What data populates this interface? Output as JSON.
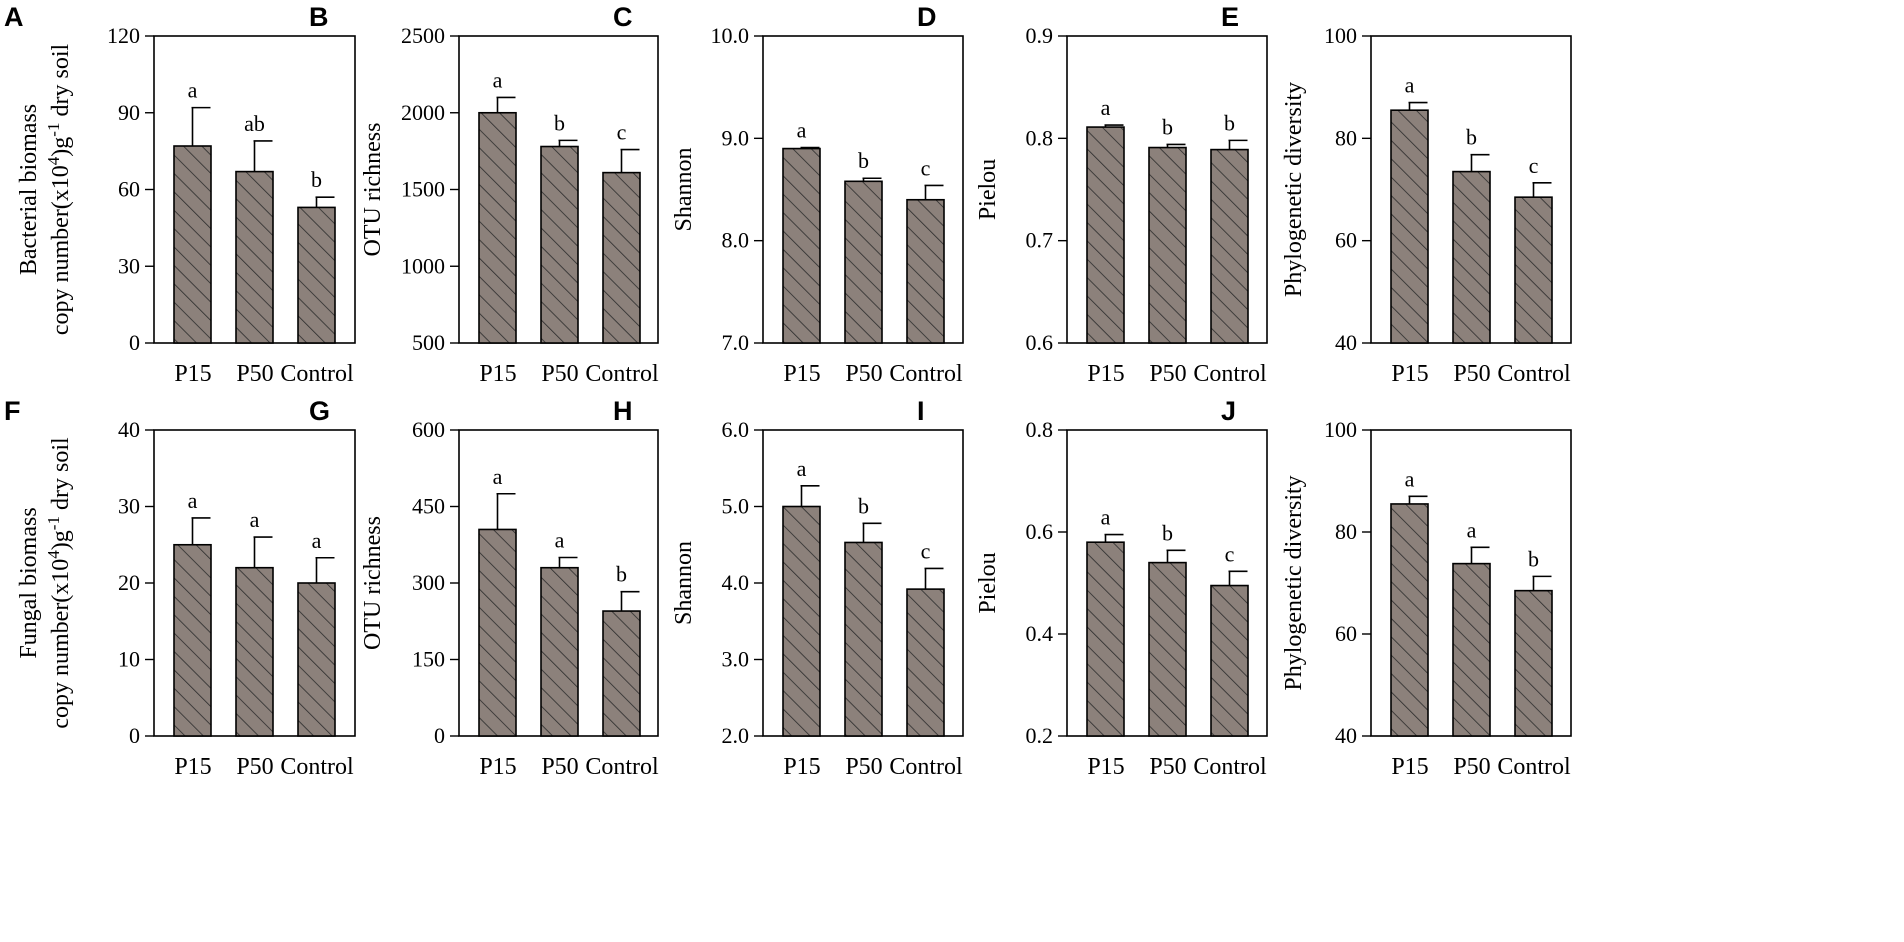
{
  "colors": {
    "bar_fill": "#8c817b",
    "hatch": "#2b2b2b",
    "axis": "#000000"
  },
  "chart_data": [
    {
      "letter": "A",
      "type": "bar",
      "categories": [
        "P15",
        "P50",
        "Control"
      ],
      "values": [
        77,
        67,
        53
      ],
      "errors": [
        15,
        12,
        4
      ],
      "significance": [
        "a",
        "ab",
        "b"
      ],
      "ylabel": "Bacterial biomass",
      "ylabel2": "copy number(x10",
      "ylabel2_sup1": "4",
      "ylabel2_mid": ")g",
      "ylabel2_sup2": "-1",
      "ylabel2_end": " dry soil",
      "ylim": [
        0,
        120
      ],
      "yticks": [
        "0",
        "30",
        "60",
        "90",
        "120"
      ],
      "ytick_values": [
        0,
        30,
        60,
        90,
        120
      ]
    },
    {
      "letter": "B",
      "type": "bar",
      "categories": [
        "P15",
        "P50",
        "Control"
      ],
      "values": [
        2000,
        1780,
        1610
      ],
      "errors": [
        100,
        40,
        150
      ],
      "significance": [
        "a",
        "b",
        "c"
      ],
      "ylabel": "OTU richness",
      "ylim": [
        500,
        2500
      ],
      "yticks": [
        "500",
        "1000",
        "1500",
        "2000",
        "2500"
      ],
      "ytick_values": [
        500,
        1000,
        1500,
        2000,
        2500
      ]
    },
    {
      "letter": "C",
      "type": "bar",
      "categories": [
        "P15",
        "P50",
        "Control"
      ],
      "values": [
        8.9,
        8.58,
        8.4
      ],
      "errors": [
        0.01,
        0.03,
        0.14
      ],
      "significance": [
        "a",
        "b",
        "c"
      ],
      "ylabel": "Shannon",
      "ylim": [
        7.0,
        10.0
      ],
      "yticks": [
        "7.0",
        "8.0",
        "9.0",
        "10.0"
      ],
      "ytick_values": [
        7.0,
        8.0,
        9.0,
        10.0
      ]
    },
    {
      "letter": "D",
      "type": "bar",
      "categories": [
        "P15",
        "P50",
        "Control"
      ],
      "values": [
        0.811,
        0.791,
        0.789
      ],
      "errors": [
        0.002,
        0.003,
        0.009
      ],
      "significance": [
        "a",
        "b",
        "b"
      ],
      "ylabel": "Pielou",
      "ylim": [
        0.6,
        0.9
      ],
      "yticks": [
        "0.6",
        "0.7",
        "0.8",
        "0.9"
      ],
      "ytick_values": [
        0.6,
        0.7,
        0.8,
        0.9
      ]
    },
    {
      "letter": "E",
      "type": "bar",
      "categories": [
        "P15",
        "P50",
        "Control"
      ],
      "values": [
        85.5,
        73.5,
        68.5
      ],
      "errors": [
        1.5,
        3.3,
        2.8
      ],
      "significance": [
        "a",
        "b",
        "c"
      ],
      "ylabel": "Phylogenetic diversity",
      "ylim": [
        40,
        100
      ],
      "yticks": [
        "40",
        "60",
        "80",
        "100"
      ],
      "ytick_values": [
        40,
        60,
        80,
        100
      ]
    },
    {
      "letter": "F",
      "type": "bar",
      "categories": [
        "P15",
        "P50",
        "Control"
      ],
      "values": [
        25,
        22,
        20
      ],
      "errors": [
        3.5,
        4,
        3.3
      ],
      "significance": [
        "a",
        "a",
        "a"
      ],
      "ylabel": "Fungal biomass",
      "ylabel2": "copy number(x10",
      "ylabel2_sup1": "4",
      "ylabel2_mid": ")g",
      "ylabel2_sup2": "-1",
      "ylabel2_end": " dry soil",
      "ylim": [
        0,
        40
      ],
      "yticks": [
        "0",
        "10",
        "20",
        "30",
        "40"
      ],
      "ytick_values": [
        0,
        10,
        20,
        30,
        40
      ]
    },
    {
      "letter": "G",
      "type": "bar",
      "categories": [
        "P15",
        "P50",
        "Control"
      ],
      "values": [
        405,
        330,
        245
      ],
      "errors": [
        70,
        20,
        38
      ],
      "significance": [
        "a",
        "a",
        "b"
      ],
      "ylabel": "OTU richness",
      "ylim": [
        0,
        600
      ],
      "yticks": [
        "0",
        "150",
        "300",
        "450",
        "600"
      ],
      "ytick_values": [
        0,
        150,
        300,
        450,
        600
      ]
    },
    {
      "letter": "H",
      "type": "bar",
      "categories": [
        "P15",
        "P50",
        "Control"
      ],
      "values": [
        5.0,
        4.53,
        3.92
      ],
      "errors": [
        0.27,
        0.25,
        0.27
      ],
      "significance": [
        "a",
        "b",
        "c"
      ],
      "ylabel": "Shannon",
      "ylim": [
        2.0,
        6.0
      ],
      "yticks": [
        "2.0",
        "3.0",
        "4.0",
        "5.0",
        "6.0"
      ],
      "ytick_values": [
        2.0,
        3.0,
        4.0,
        5.0,
        6.0
      ]
    },
    {
      "letter": "I",
      "type": "bar",
      "categories": [
        "P15",
        "P50",
        "Control"
      ],
      "values": [
        0.58,
        0.54,
        0.495
      ],
      "errors": [
        0.015,
        0.024,
        0.028
      ],
      "significance": [
        "a",
        "b",
        "c"
      ],
      "ylabel": "Pielou",
      "ylim": [
        0.2,
        0.8
      ],
      "yticks": [
        "0.2",
        "0.4",
        "0.6",
        "0.8"
      ],
      "ytick_values": [
        0.2,
        0.4,
        0.6,
        0.8
      ]
    },
    {
      "letter": "J",
      "type": "bar",
      "categories": [
        "P15",
        "P50",
        "Control"
      ],
      "values": [
        85.5,
        73.8,
        68.5
      ],
      "errors": [
        1.5,
        3.2,
        2.8
      ],
      "significance": [
        "a",
        "a",
        "b"
      ],
      "ylabel": "Phylogenetic diversity",
      "ylim": [
        40,
        100
      ],
      "yticks": [
        "40",
        "60",
        "80",
        "100"
      ],
      "ytick_values": [
        40,
        60,
        80,
        100
      ]
    }
  ]
}
